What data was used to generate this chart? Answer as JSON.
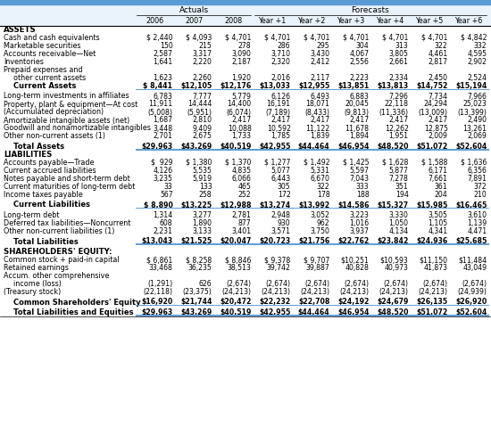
{
  "col_headers": [
    "",
    "2006",
    "2007",
    "2008",
    "Year +1",
    "Year +2",
    "Year +3",
    "Year +4",
    "Year +5",
    "Year +6"
  ],
  "actuals_header": "Actuals",
  "forecasts_header": "Forecasts",
  "rows": [
    {
      "label": "ASSETS",
      "values": [
        "",
        "",
        "",
        "",
        "",
        "",
        "",
        "",
        ""
      ],
      "style": "section"
    },
    {
      "label": "Cash and cash equivalents",
      "values": [
        "$ 2,440",
        "$ 4,093",
        "$ 4,701",
        "$ 4,701",
        "$ 4,701",
        "$ 4,701",
        "$ 4,701",
        "$ 4,701",
        "$ 4,842"
      ],
      "style": "normal"
    },
    {
      "label": "Marketable securities",
      "values": [
        "150",
        "215",
        "278",
        "286",
        "295",
        "304",
        "313",
        "322",
        "332"
      ],
      "style": "normal"
    },
    {
      "label": "Accounts receivable—Net",
      "values": [
        "2,587",
        "3,317",
        "3,090",
        "3,710",
        "3,430",
        "4,067",
        "3,805",
        "4,461",
        "4,595"
      ],
      "style": "normal"
    },
    {
      "label": "Inventories",
      "values": [
        "1,641",
        "2,220",
        "2,187",
        "2,320",
        "2,412",
        "2,556",
        "2,661",
        "2,817",
        "2,902"
      ],
      "style": "normal"
    },
    {
      "label": "Prepaid expenses and",
      "values": [
        "",
        "",
        "",
        "",
        "",
        "",
        "",
        "",
        ""
      ],
      "style": "normal_nodata"
    },
    {
      "label": "other current assets",
      "values": [
        "1,623",
        "2,260",
        "1,920",
        "2,016",
        "2,117",
        "2,223",
        "2,334",
        "2,450",
        "2,524"
      ],
      "style": "normal_indent"
    },
    {
      "label": "Current Assets",
      "values": [
        "$ 8,441",
        "$12,105",
        "$12,176",
        "$13,033",
        "$12,955",
        "$13,851",
        "$13,813",
        "$14,752",
        "$15,194"
      ],
      "style": "subtotal"
    },
    {
      "label": "",
      "values": [
        "",
        "",
        "",
        "",
        "",
        "",
        "",
        "",
        ""
      ],
      "style": "spacer"
    },
    {
      "label": "Long-term investments in affiliates",
      "values": [
        "6,783",
        "7,777",
        "5,779",
        "6,126",
        "6,493",
        "6,883",
        "7,296",
        "7,734",
        "7,966"
      ],
      "style": "normal"
    },
    {
      "label": "Property, plant & equipment—At cost",
      "values": [
        "11,911",
        "14,444",
        "14,400",
        "16,191",
        "18,071",
        "20,045",
        "22,118",
        "24,294",
        "25,023"
      ],
      "style": "normal"
    },
    {
      "label": "(Accumulated depreciation)",
      "values": [
        "(5,008)",
        "(5,951)",
        "(6,074)",
        "(7,189)",
        "(8,433)",
        "(9,813)",
        "(11,336)",
        "(13,009)",
        "(13,399)"
      ],
      "style": "normal"
    },
    {
      "label": "Amortizable intangible assets (net)",
      "values": [
        "1,687",
        "2,810",
        "2,417",
        "2,417",
        "2,417",
        "2,417",
        "2,417",
        "2,417",
        "2,490"
      ],
      "style": "normal"
    },
    {
      "label": "Goodwill and nonamortizable intangibles",
      "values": [
        "3,448",
        "9,409",
        "10,088",
        "10,592",
        "11,122",
        "11,678",
        "12,262",
        "12,875",
        "13,261"
      ],
      "style": "normal"
    },
    {
      "label": "Other non-current assets (1)",
      "values": [
        "2,701",
        "2,675",
        "1,733",
        "1,785",
        "1,839",
        "1,894",
        "1,951",
        "2,009",
        "2,069"
      ],
      "style": "normal"
    },
    {
      "label": "",
      "values": [
        "",
        "",
        "",
        "",
        "",
        "",
        "",
        "",
        ""
      ],
      "style": "spacer"
    },
    {
      "label": "Total Assets",
      "values": [
        "$29,963",
        "$43,269",
        "$40,519",
        "$42,955",
        "$44,464",
        "$46,954",
        "$48,520",
        "$51,072",
        "$52,604"
      ],
      "style": "total"
    },
    {
      "label": "LIABILITIES",
      "values": [
        "",
        "",
        "",
        "",
        "",
        "",
        "",
        "",
        ""
      ],
      "style": "section"
    },
    {
      "label": "Accounts payable—Trade",
      "values": [
        "$  929",
        "$ 1,380",
        "$ 1,370",
        "$ 1,277",
        "$ 1,492",
        "$ 1,425",
        "$ 1,628",
        "$ 1,588",
        "$ 1,636"
      ],
      "style": "normal"
    },
    {
      "label": "Current accrued liabilities",
      "values": [
        "4,126",
        "5,535",
        "4,835",
        "5,077",
        "5,331",
        "5,597",
        "5,877",
        "6,171",
        "6,356"
      ],
      "style": "normal"
    },
    {
      "label": "Notes payable and short-term debt",
      "values": [
        "3,235",
        "5,919",
        "6,066",
        "6,443",
        "6,670",
        "7,043",
        "7,278",
        "7,661",
        "7,891"
      ],
      "style": "normal"
    },
    {
      "label": "Current maturities of long-term debt",
      "values": [
        "33",
        "133",
        "465",
        "305",
        "322",
        "333",
        "351",
        "361",
        "372"
      ],
      "style": "normal"
    },
    {
      "label": "Income taxes payable",
      "values": [
        "567",
        "258",
        "252",
        "172",
        "178",
        "188",
        "194",
        "204",
        "210"
      ],
      "style": "normal"
    },
    {
      "label": "",
      "values": [
        "",
        "",
        "",
        "",
        "",
        "",
        "",
        "",
        ""
      ],
      "style": "spacer"
    },
    {
      "label": "Current Liabilities",
      "values": [
        "$ 8,890",
        "$13,225",
        "$12,988",
        "$13,274",
        "$13,992",
        "$14,586",
        "$15,327",
        "$15,985",
        "$16,465"
      ],
      "style": "subtotal"
    },
    {
      "label": "",
      "values": [
        "",
        "",
        "",
        "",
        "",
        "",
        "",
        "",
        ""
      ],
      "style": "spacer"
    },
    {
      "label": "Long-term debt",
      "values": [
        "1,314",
        "3,277",
        "2,781",
        "2,948",
        "3,052",
        "3,223",
        "3,330",
        "3,505",
        "3,610"
      ],
      "style": "normal"
    },
    {
      "label": "Deferred tax liabilities—Noncurrent",
      "values": [
        "608",
        "1,890",
        "877",
        "930",
        "962",
        "1,016",
        "1,050",
        "1,105",
        "1,139"
      ],
      "style": "normal"
    },
    {
      "label": "Other non-current liabilities (1)",
      "values": [
        "2,231",
        "3,133",
        "3,401",
        "3,571",
        "3,750",
        "3,937",
        "4,134",
        "4,341",
        "4,471"
      ],
      "style": "normal"
    },
    {
      "label": "",
      "values": [
        "",
        "",
        "",
        "",
        "",
        "",
        "",
        "",
        ""
      ],
      "style": "spacer"
    },
    {
      "label": "Total Liabilities",
      "values": [
        "$13,043",
        "$21,525",
        "$20,047",
        "$20,723",
        "$21,756",
        "$22,762",
        "$23,842",
        "$24,936",
        "$25,685"
      ],
      "style": "total"
    },
    {
      "label": "",
      "values": [
        "",
        "",
        "",
        "",
        "",
        "",
        "",
        "",
        ""
      ],
      "style": "spacer"
    },
    {
      "label": "SHAREHOLDERS' EQUITY:",
      "values": [
        "",
        "",
        "",
        "",
        "",
        "",
        "",
        "",
        ""
      ],
      "style": "section"
    },
    {
      "label": "Common stock + paid-in capital",
      "values": [
        "$ 6,861",
        "$ 8,258",
        "$ 8,846",
        "$ 9,378",
        "$ 9,707",
        "$10,251",
        "$10,593",
        "$11,150",
        "$11,484"
      ],
      "style": "normal"
    },
    {
      "label": "Retained earnings",
      "values": [
        "33,468",
        "36,235",
        "38,513",
        "39,742",
        "39,887",
        "40,828",
        "40,973",
        "41,873",
        "43,049"
      ],
      "style": "normal"
    },
    {
      "label": "Accum. other comprehensive",
      "values": [
        "",
        "",
        "",
        "",
        "",
        "",
        "",
        "",
        ""
      ],
      "style": "normal_nodata"
    },
    {
      "label": "income (loss)",
      "values": [
        "(1,291)",
        "626",
        "(2,674)",
        "(2,674)",
        "(2,674)",
        "(2,674)",
        "(2,674)",
        "(2,674)",
        "(2,674)"
      ],
      "style": "normal_indent"
    },
    {
      "label": "(Treasury stock)",
      "values": [
        "(22,118)",
        "(23,375)",
        "(24,213)",
        "(24,213)",
        "(24,213)",
        "(24,213)",
        "(24,213)",
        "(24,213)",
        "(24,939)"
      ],
      "style": "normal"
    },
    {
      "label": "",
      "values": [
        "",
        "",
        "",
        "",
        "",
        "",
        "",
        "",
        ""
      ],
      "style": "spacer"
    },
    {
      "label": "Common Shareholders' Equity",
      "values": [
        "$16,920",
        "$21,744",
        "$20,472",
        "$22,232",
        "$22,708",
        "$24,192",
        "$24,679",
        "$26,135",
        "$26,920"
      ],
      "style": "subtotal"
    },
    {
      "label": "",
      "values": [
        "",
        "",
        "",
        "",
        "",
        "",
        "",
        "",
        ""
      ],
      "style": "spacer"
    },
    {
      "label": "Total Liabilities and Equities",
      "values": [
        "$29,963",
        "$43,269",
        "$40,519",
        "$42,955",
        "$44,464",
        "$46,954",
        "$48,520",
        "$51,072",
        "$52,604"
      ],
      "style": "total"
    }
  ],
  "top_bar_color": "#5b9bd5",
  "header_bg_color": "#ddeeff",
  "line_color": "#5b9bd5",
  "text_color": "#000000"
}
